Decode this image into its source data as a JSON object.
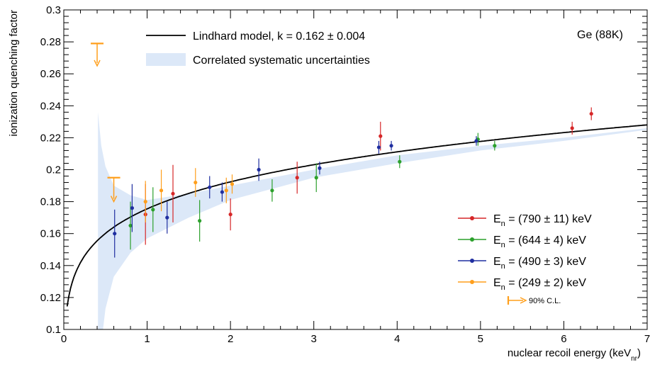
{
  "chart_data": {
    "type": "scatter",
    "title": "",
    "annotation": "Ge (88K)",
    "xlabel": "nuclear recoil energy (keV",
    "xlabel_sub": "nr",
    "xlabel_close": ")",
    "ylabel": "ionization quenching factor",
    "xlim": [
      0,
      7
    ],
    "ylim": [
      0.1,
      0.3
    ],
    "x_ticks": [
      "0",
      "1",
      "2",
      "3",
      "4",
      "5",
      "6",
      "7"
    ],
    "y_ticks": [
      "0.1",
      "0.12",
      "0.14",
      "0.16",
      "0.18",
      "0.2",
      "0.22",
      "0.24",
      "0.26",
      "0.28",
      "0.3"
    ],
    "grid": false,
    "model": {
      "label": "Lindhard model, k = 0.162 ± 0.004",
      "k": 0.162,
      "color": "#000000"
    },
    "band": {
      "label": "Correlated systematic uncertainties",
      "color": "#dce8f8",
      "upper": [
        [
          0.41,
          0.236
        ],
        [
          0.45,
          0.215
        ],
        [
          0.5,
          0.202
        ],
        [
          0.6,
          0.19
        ],
        [
          0.8,
          0.184
        ],
        [
          1.0,
          0.181
        ],
        [
          1.5,
          0.185
        ],
        [
          2.0,
          0.19
        ],
        [
          3.0,
          0.2
        ],
        [
          4.0,
          0.209
        ],
        [
          5.0,
          0.215
        ],
        [
          6.0,
          0.22
        ],
        [
          7.0,
          0.226
        ]
      ],
      "lower": [
        [
          0.41,
          0.1
        ],
        [
          0.47,
          0.1
        ],
        [
          0.5,
          0.113
        ],
        [
          0.6,
          0.133
        ],
        [
          0.8,
          0.148
        ],
        [
          1.0,
          0.157
        ],
        [
          1.5,
          0.17
        ],
        [
          2.0,
          0.181
        ],
        [
          3.0,
          0.195
        ],
        [
          4.0,
          0.204
        ],
        [
          5.0,
          0.212
        ],
        [
          6.0,
          0.218
        ],
        [
          7.0,
          0.225
        ]
      ]
    },
    "series": [
      {
        "name": "E",
        "name_sub": "n",
        "name_rest": " = (790 ± 11) keV",
        "color": "#d62728",
        "points": [
          {
            "x": 0.98,
            "y": 0.172,
            "err": 0.019
          },
          {
            "x": 1.31,
            "y": 0.185,
            "err": 0.018
          },
          {
            "x": 2.0,
            "y": 0.172,
            "err": 0.01
          },
          {
            "x": 2.8,
            "y": 0.195,
            "err": 0.01
          },
          {
            "x": 3.8,
            "y": 0.221,
            "err": 0.009
          },
          {
            "x": 6.1,
            "y": 0.226,
            "err": 0.004
          },
          {
            "x": 6.33,
            "y": 0.235,
            "err": 0.004
          }
        ]
      },
      {
        "name": "E",
        "name_sub": "n",
        "name_rest": " = (644 ± 4) keV",
        "color": "#2ca02c",
        "points": [
          {
            "x": 0.8,
            "y": 0.165,
            "err": 0.015
          },
          {
            "x": 1.07,
            "y": 0.175,
            "err": 0.014
          },
          {
            "x": 1.63,
            "y": 0.168,
            "err": 0.013
          },
          {
            "x": 2.5,
            "y": 0.187,
            "err": 0.007
          },
          {
            "x": 3.03,
            "y": 0.195,
            "err": 0.009
          },
          {
            "x": 4.03,
            "y": 0.205,
            "err": 0.004
          },
          {
            "x": 4.97,
            "y": 0.219,
            "err": 0.004
          },
          {
            "x": 5.17,
            "y": 0.215,
            "err": 0.003
          }
        ]
      },
      {
        "name": "E",
        "name_sub": "n",
        "name_rest": " = (490 ± 3) keV",
        "color": "#1f2ea0",
        "points": [
          {
            "x": 0.61,
            "y": 0.16,
            "err": 0.015
          },
          {
            "x": 0.82,
            "y": 0.176,
            "err": 0.015
          },
          {
            "x": 1.24,
            "y": 0.17,
            "err": 0.01
          },
          {
            "x": 1.75,
            "y": 0.189,
            "err": 0.007
          },
          {
            "x": 1.9,
            "y": 0.186,
            "err": 0.006
          },
          {
            "x": 2.34,
            "y": 0.2,
            "err": 0.007
          },
          {
            "x": 3.07,
            "y": 0.201,
            "err": 0.004
          },
          {
            "x": 3.78,
            "y": 0.214,
            "err": 0.004
          },
          {
            "x": 3.93,
            "y": 0.215,
            "err": 0.003
          },
          {
            "x": 4.95,
            "y": 0.218,
            "err": 0.003
          }
        ]
      },
      {
        "name": "E",
        "name_sub": "n",
        "name_rest": " = (249 ± 2) keV",
        "color": "#ff9f1c",
        "points": [
          {
            "x": 0.98,
            "y": 0.18,
            "err": 0.013
          },
          {
            "x": 1.17,
            "y": 0.187,
            "err": 0.013
          },
          {
            "x": 1.58,
            "y": 0.192,
            "err": 0.009
          },
          {
            "x": 1.95,
            "y": 0.187,
            "err": 0.008
          },
          {
            "x": 2.02,
            "y": 0.191,
            "err": 0.006
          }
        ]
      }
    ],
    "limits": {
      "label": "90% C.L.",
      "color": "#ff9f1c",
      "points": [
        {
          "x": 0.4,
          "y": 0.279,
          "arrow_to": 0.265
        },
        {
          "x": 0.6,
          "y": 0.195,
          "arrow_to": 0.18
        }
      ]
    },
    "legend_top": "top-center",
    "legend_bottom": "bottom-right"
  }
}
